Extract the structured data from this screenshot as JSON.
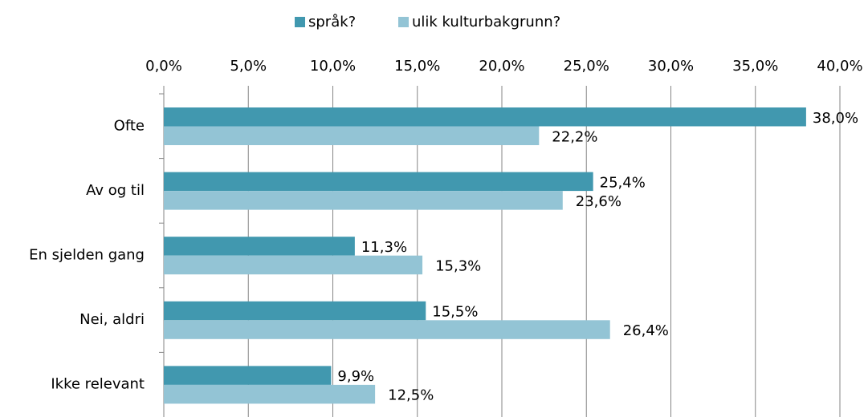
{
  "chart_data": {
    "type": "hbar",
    "categories": [
      "Ofte",
      "Av og til",
      "En sjelden gang",
      "Nei, aldri",
      "Ikke relevant"
    ],
    "series": [
      {
        "name": "språk?",
        "color": "#4198af",
        "values": [
          38.0,
          25.4,
          11.3,
          15.5,
          9.9
        ],
        "value_labels": [
          "38,0%",
          "25,4%",
          "11,3%",
          "15,5%",
          "9,9%"
        ]
      },
      {
        "name": "ulik kulturbakgrunn?",
        "color": "#93c4d5",
        "values": [
          22.2,
          23.6,
          15.3,
          26.4,
          12.5
        ],
        "value_labels": [
          "22,2%",
          "23,6%",
          "15,3%",
          "26,4%",
          "12,5%"
        ]
      }
    ],
    "xlim": [
      0,
      40
    ],
    "xticks": [
      {
        "value": 0,
        "label": "0,0%"
      },
      {
        "value": 5,
        "label": "5,0%"
      },
      {
        "value": 10,
        "label": "10,0%"
      },
      {
        "value": 15,
        "label": "15,0%"
      },
      {
        "value": 20,
        "label": "20,0%"
      },
      {
        "value": 25,
        "label": "25,0%"
      },
      {
        "value": 30,
        "label": "30,0%"
      },
      {
        "value": 35,
        "label": "35,0%"
      },
      {
        "value": 40,
        "label": "40,0%"
      }
    ],
    "grid": true,
    "legend": "top"
  }
}
